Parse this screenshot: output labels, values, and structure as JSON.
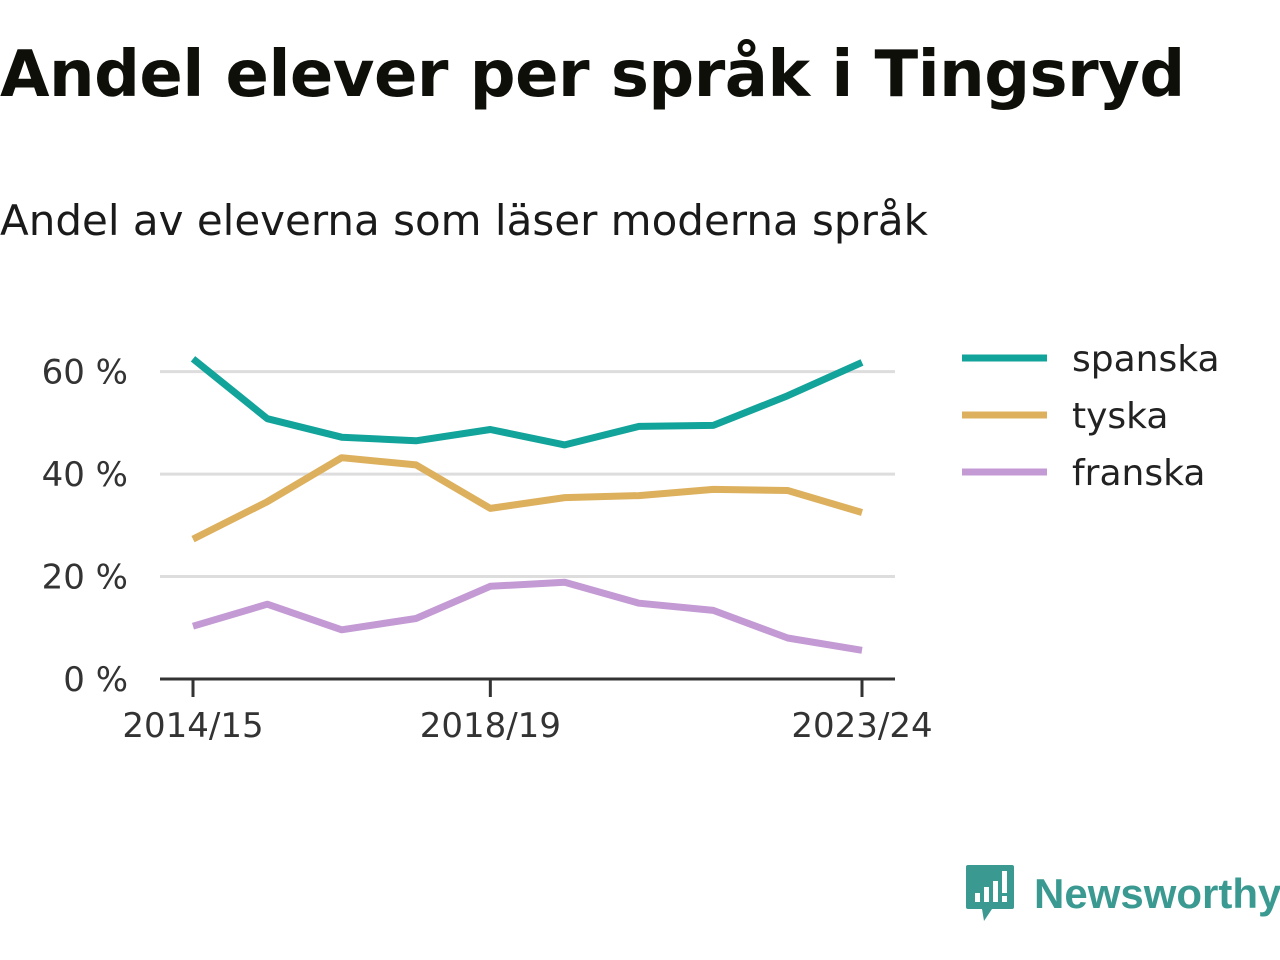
{
  "title": "Andel elever per språk i Tingsryd",
  "subtitle": "Andel av eleverna som läser moderna språk",
  "brand": {
    "name": "Newsworthy",
    "icon": "newsworthy-logo-icon",
    "color": "#3a9a92"
  },
  "chart_data": {
    "type": "line",
    "title": "Andel elever per språk i Tingsryd",
    "subtitle": "Andel av eleverna som läser moderna språk",
    "xlabel": "",
    "ylabel": "",
    "x_tick_labels": [
      "2014/15",
      "2018/19",
      "2023/24"
    ],
    "x_tick_index": [
      0,
      4,
      9
    ],
    "y_ticks": [
      0,
      20,
      40,
      60
    ],
    "y_tick_labels": [
      "0 %",
      "20 %",
      "40 %",
      "60 %"
    ],
    "ylim": [
      0,
      65
    ],
    "grid": true,
    "legend_position": "right",
    "series": [
      {
        "name": "spanska",
        "color": "#12a39a",
        "values": [
          62.5,
          50.8,
          47.2,
          46.5,
          48.7,
          45.7,
          49.3,
          49.5,
          55.3,
          61.8
        ]
      },
      {
        "name": "tyska",
        "color": "#ddb05e",
        "values": [
          27.3,
          34.6,
          43.2,
          41.8,
          33.3,
          35.4,
          35.8,
          37.0,
          36.8,
          32.5
        ]
      },
      {
        "name": "franska",
        "color": "#c39ad3",
        "values": [
          10.3,
          14.6,
          9.6,
          11.8,
          18.1,
          18.9,
          14.8,
          13.4,
          8.0,
          5.6
        ]
      }
    ]
  }
}
